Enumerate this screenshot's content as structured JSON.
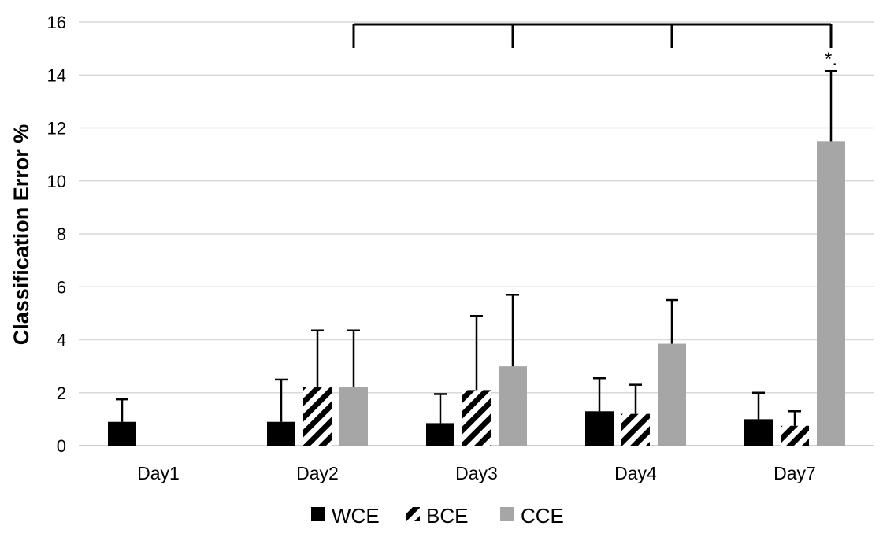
{
  "chart_data": {
    "type": "bar",
    "title": "",
    "xlabel": "",
    "ylabel": "Classification Error %",
    "ylim": [
      0,
      16
    ],
    "yticks": [
      0,
      2,
      4,
      6,
      8,
      10,
      12,
      14,
      16
    ],
    "grid": true,
    "legend_position": "bottom",
    "categories": [
      "Day1",
      "Day2",
      "Day3",
      "Day4",
      "Day7"
    ],
    "series": [
      {
        "name": "WCE",
        "color": "#000000",
        "pattern": "solid",
        "values": [
          0.9,
          0.9,
          0.85,
          1.3,
          1.0
        ],
        "errors": [
          0.85,
          1.6,
          1.1,
          1.25,
          1.0
        ]
      },
      {
        "name": "BCE",
        "color": "#000000",
        "pattern": "diagonal-stripes",
        "values": [
          null,
          2.2,
          2.1,
          1.2,
          0.75
        ],
        "errors": [
          null,
          2.15,
          2.8,
          1.1,
          0.55
        ]
      },
      {
        "name": "CCE",
        "color": "#a6a6a6",
        "pattern": "solid",
        "values": [
          null,
          2.2,
          3.0,
          3.85,
          11.5
        ],
        "errors": [
          null,
          2.15,
          2.7,
          1.65,
          2.65
        ]
      }
    ],
    "annotations": [
      {
        "type": "significance-bracket",
        "text": "*.",
        "from_category": "Day2",
        "to_category": "Day7",
        "ticks_at": [
          "Day2",
          "Day3",
          "Day4",
          "Day7"
        ],
        "y": 16
      }
    ]
  }
}
